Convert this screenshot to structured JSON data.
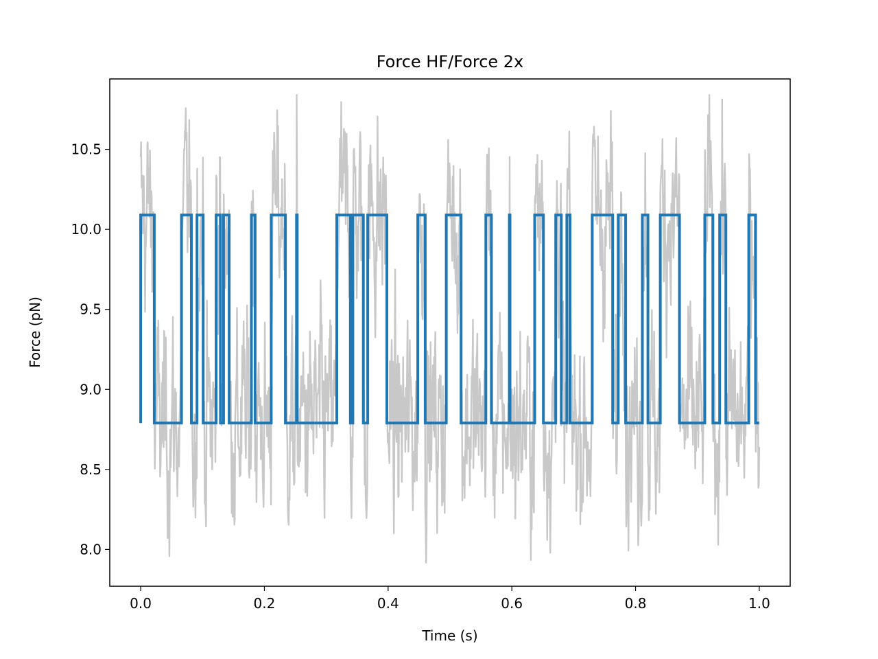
{
  "chart_data": {
    "type": "line",
    "title": "Force HF/Force 2x",
    "xlabel": "Time (s)",
    "ylabel": "Force (pN)",
    "xlim": [
      -0.05,
      1.05
    ],
    "ylim": [
      7.77,
      10.94
    ],
    "xticks": [
      0.0,
      0.2,
      0.4,
      0.6,
      0.8,
      1.0
    ],
    "xtick_labels": [
      "0.0",
      "0.2",
      "0.4",
      "0.6",
      "0.8",
      "1.0"
    ],
    "yticks": [
      8.0,
      8.5,
      9.0,
      9.5,
      10.0,
      10.5
    ],
    "ytick_labels": [
      "8.0",
      "8.5",
      "9.0",
      "9.5",
      "10.0",
      "10.5"
    ],
    "grid": false,
    "colors": {
      "raw": "#c8c8c8",
      "fit": "#1f77b4",
      "frame": "#000000"
    },
    "levels": {
      "low": 8.79,
      "high": 10.09
    },
    "series": [
      {
        "kind": "noisy-trace",
        "x_range": [
          0.0,
          1.0
        ],
        "noise_sd": 0.32,
        "follows": "step-fit"
      },
      {
        "kind": "step",
        "high_intervals": [
          [
            0.0,
            0.022
          ],
          [
            0.066,
            0.082
          ],
          [
            0.091,
            0.101
          ],
          [
            0.122,
            0.129
          ],
          [
            0.134,
            0.143
          ],
          [
            0.179,
            0.185
          ],
          [
            0.211,
            0.234
          ],
          [
            0.252,
            0.253
          ],
          [
            0.317,
            0.339
          ],
          [
            0.343,
            0.36
          ],
          [
            0.367,
            0.398
          ],
          [
            0.448,
            0.46
          ],
          [
            0.494,
            0.518
          ],
          [
            0.558,
            0.567
          ],
          [
            0.596,
            0.597
          ],
          [
            0.637,
            0.651
          ],
          [
            0.671,
            0.68
          ],
          [
            0.689,
            0.694
          ],
          [
            0.73,
            0.763
          ],
          [
            0.772,
            0.784
          ],
          [
            0.811,
            0.82
          ],
          [
            0.84,
            0.871
          ],
          [
            0.912,
            0.925
          ],
          [
            0.936,
            0.946
          ],
          [
            0.983,
            0.994
          ]
        ],
        "x_end": 1.0
      }
    ]
  }
}
